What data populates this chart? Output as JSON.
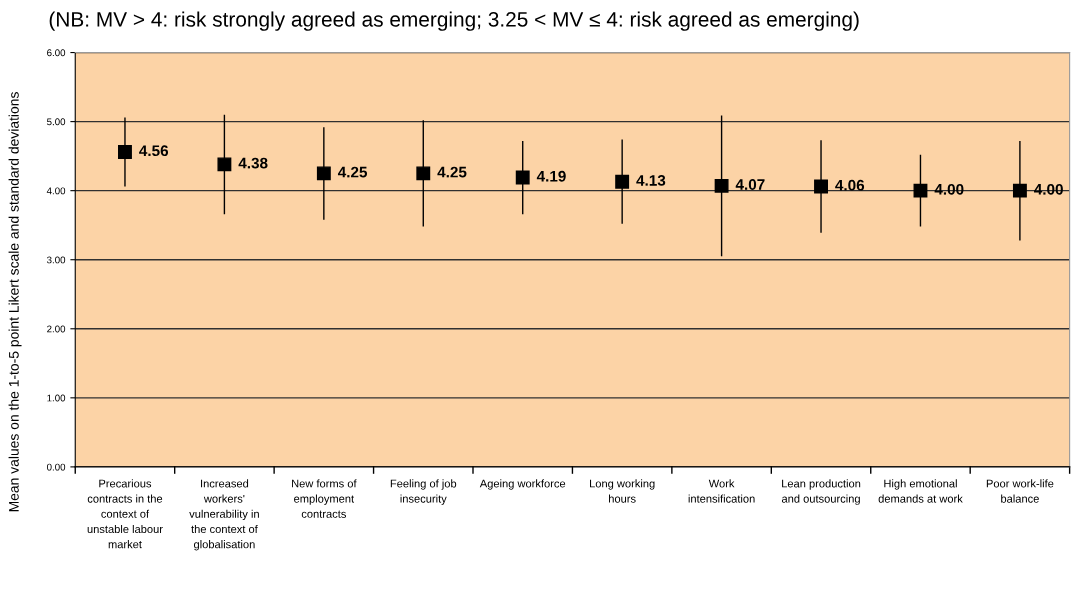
{
  "chart_data": {
    "type": "scatter",
    "title": "(NB: MV > 4: risk strongly agreed as emerging; 3.25 < MV ≤ 4: risk agreed as emerging)",
    "ylabel": "Mean values on the 1-to-5 point Likert scale and standard deviations",
    "categories": [
      "Precarious contracts in the context of unstable labour market",
      "Increased workers' vulnerability in the context of globalisation",
      "New forms of employment contracts",
      "Feeling of job insecurity",
      "Ageing workforce",
      "Long working hours",
      "Work intensification",
      "Lean production and outsourcing",
      "High emotional demands at work",
      "Poor work-life balance"
    ],
    "series": [
      {
        "color": "#000000",
        "values": [
          4.56,
          4.38,
          4.25,
          4.25,
          4.19,
          4.13,
          4.07,
          4.06,
          4.0,
          4.0
        ],
        "errors": [
          0.5,
          0.72,
          0.67,
          0.77,
          0.53,
          0.61,
          1.02,
          0.67,
          0.52,
          0.72
        ],
        "value_labels": [
          "4.56",
          "4.38",
          "4.25",
          "4.25",
          "4.19",
          "4.13",
          "4.07",
          "4.06",
          "4.00",
          "4.00"
        ]
      }
    ],
    "ylim": [
      0,
      6
    ],
    "yticks": [
      {
        "value": 0,
        "label": "0.00"
      },
      {
        "value": 1,
        "label": "1.00"
      },
      {
        "value": 2,
        "label": "2.00"
      },
      {
        "value": 3,
        "label": "3.00"
      },
      {
        "value": 4,
        "label": "4.00"
      },
      {
        "value": 5,
        "label": "5.00"
      },
      {
        "value": 6,
        "label": "6.00"
      }
    ],
    "grid": "y",
    "marker": "square"
  }
}
